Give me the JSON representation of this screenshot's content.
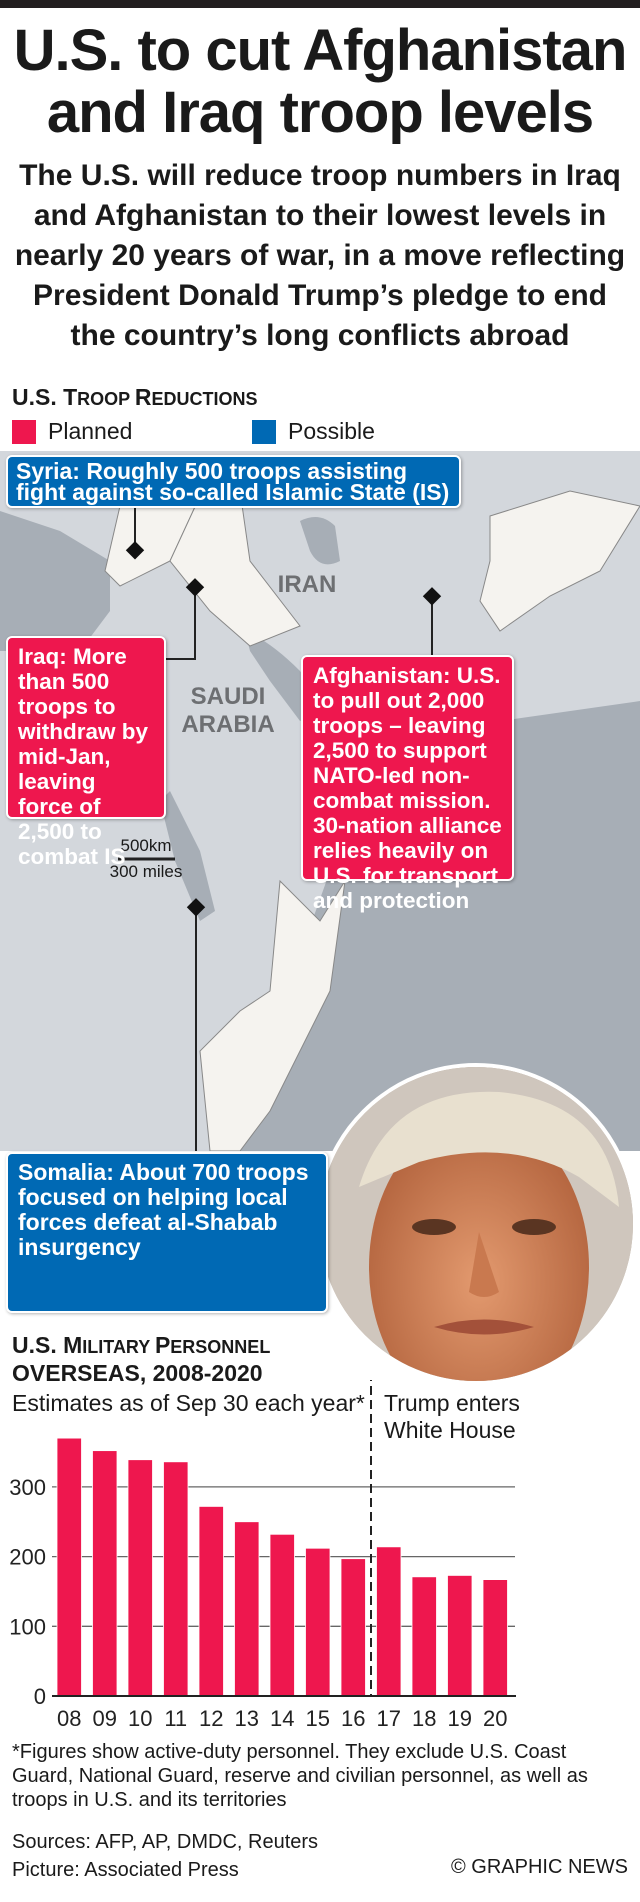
{
  "title": [
    "U.S. to cut Afghanistan",
    "and Iraq troop levels"
  ],
  "subtitle": "The U.S. will reduce troop numbers in Iraq and Afghanistan to their lowest levels in nearly 20 years of war, in a move reflecting President Donald Trump’s pledge to end the country’s long conflicts abroad",
  "section1": {
    "first": "U.S. T",
    "rest1": "ROOP ",
    "r2first": "R",
    "rest2": "EDUCTIONS"
  },
  "legend": [
    {
      "label": "Planned",
      "color": "#ee174e"
    },
    {
      "label": "Possible",
      "color": "#0069b4"
    }
  ],
  "map": {
    "labels": {
      "iran": "IRAN",
      "saudi": "SAUDI",
      "arabia": "ARABIA"
    },
    "scale": {
      "km": "500km",
      "miles": "300 miles"
    },
    "callouts": {
      "syria": "Syria: Roughly 500 troops assisting fight against so-called Islamic State (IS)",
      "iraq": "Iraq: More than 500 troops to withdraw by mid-Jan, leaving force of 2,500 to combat IS",
      "afghanistan": "Afghanistan: U.S. to pull out 2,000 troops – leaving 2,500 to support NATO-led non-combat mission. 30-nation alliance relies heavily on U.S. for transport and protection",
      "somalia": "Somalia: About 700 troops focused on helping local forces defeat al-Shabab insurgency"
    }
  },
  "section2": {
    "line1a": "U.S. M",
    "line1b": "ILITARY ",
    "line1c": "P",
    "line1d": "ERSONNEL",
    "line2": "OVERSEAS, 2008-2020"
  },
  "chart_data": {
    "type": "bar",
    "title": "U.S. Military Personnel Overseas, 2008-2020",
    "subtitle": "Estimates as of Sep 30 each year*",
    "categories": [
      "08",
      "09",
      "10",
      "11",
      "12",
      "13",
      "14",
      "15",
      "16",
      "17",
      "18",
      "19",
      "20"
    ],
    "values": [
      370,
      352,
      339,
      336,
      272,
      250,
      232,
      212,
      197,
      214,
      171,
      173,
      167
    ],
    "ylim": [
      0,
      400
    ],
    "yticks": [
      0,
      100,
      200,
      300
    ],
    "grid": true,
    "bar_color": "#ee174e",
    "annotation": {
      "after_category": "16",
      "text": "Trump enters White House"
    }
  },
  "footnote": "*Figures show active-duty personnel. They exclude U.S. Coast Guard, National Guard, reserve and civilian personnel, as well as troops in U.S. and its territories",
  "sources": "Sources: AFP, AP, DMDC, Reuters",
  "picture": "Picture: Associated Press",
  "brand": "© GRAPHIC NEWS"
}
